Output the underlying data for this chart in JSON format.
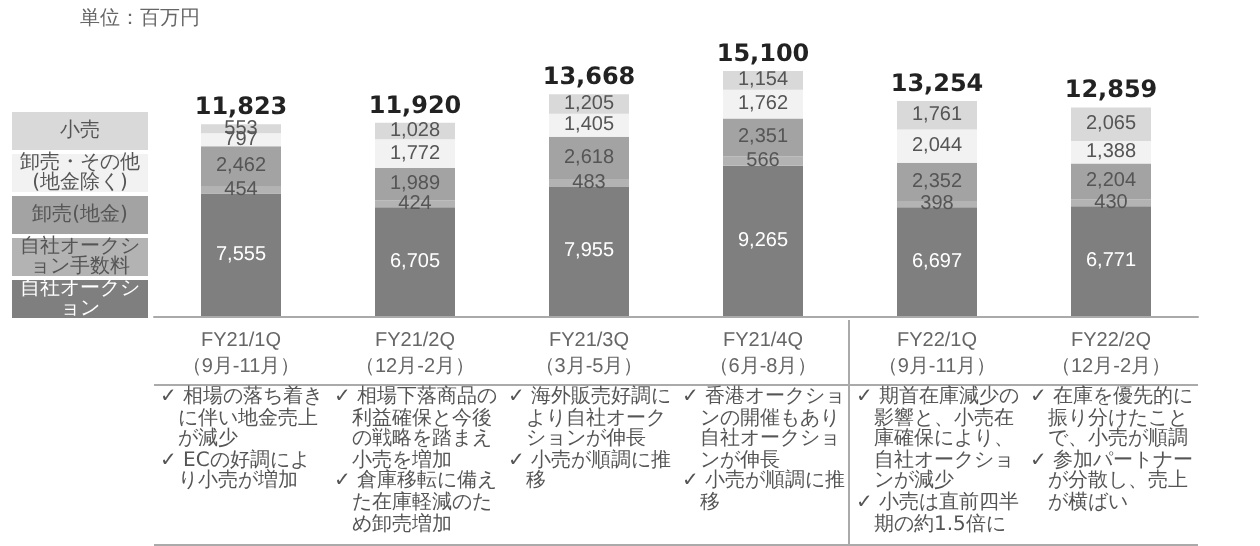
{
  "chart_data": {
    "type": "bar",
    "stacked": true,
    "legend": "left",
    "categories": [
      "FY21/1Q\n（9月-11月）",
      "FY21/2Q\n（12月-2月）",
      "FY21/3Q\n（3月-5月）",
      "FY21/4Q\n（6月-8月）",
      "FY22/1Q\n（9月-11月）",
      "FY22/2Q\n（12月-2月）"
    ],
    "series": [
      {
        "name": "自社オークション",
        "color": "#7f7f7f",
        "values": [
          7555,
          6705,
          7955,
          9265,
          6697,
          6771
        ],
        "value_labels": [
          "7,555",
          "6,705",
          "7,955",
          "9,265",
          "6,697",
          "6,771"
        ]
      },
      {
        "name": "自社オークション手数料",
        "color": "#b3b3b3",
        "values": [
          454,
          424,
          483,
          566,
          398,
          430
        ],
        "value_labels": [
          "454",
          "424",
          "483",
          "566",
          "398",
          "430"
        ]
      },
      {
        "name": "卸売(地金)",
        "color": "#a3a3a3",
        "values": [
          2462,
          1989,
          2618,
          2351,
          2352,
          2204
        ],
        "value_labels": [
          "2,462",
          "1,989",
          "2,618",
          "2,351",
          "2,352",
          "2,204"
        ]
      },
      {
        "name": "卸売・その他(地金除く)",
        "color": "#f2f2f2",
        "values": [
          797,
          1772,
          1405,
          1762,
          2044,
          1388
        ],
        "value_labels": [
          "797",
          "1,772",
          "1,405",
          "1,762",
          "2,044",
          "1,388"
        ]
      },
      {
        "name": "小売",
        "color": "#d9d9d9",
        "values": [
          553,
          1028,
          1205,
          1154,
          1761,
          2065
        ],
        "value_labels": [
          "553",
          "1,028",
          "1,205",
          "1,154",
          "1,761",
          "2,065"
        ]
      }
    ],
    "totals": [
      "11,823",
      "11,920",
      "13,668",
      "15,100",
      "13,254",
      "12,859"
    ],
    "annotations": [
      "単位：百万円",
      "✓ 相場の落ち着きに伴い地金売上が減少\n✓ ECの好調により小売が増加",
      "✓ 相場下落商品の利益確保と今後の戦略を踏まえ小売を増加\n✓ 倉庫移転に備えた在庫軽減のため卸売増加",
      "✓ 海外販売好調により自社オークションが伸長\n✓ 小売が順調に推移",
      "✓ 香港オークションの開催もあり自社オークションが伸長\n✓ 小売が順調に推移",
      "✓ 期首在庫減少の影響と、小売在庫確保により、自社オークションが減少\n✓ 小売は直前四半期の約1.5倍に",
      "✓ 在庫を優先的に振り分けたことで、小売が順調\n✓ 参加パートナーが分散し、売上が横ばい"
    ]
  }
}
